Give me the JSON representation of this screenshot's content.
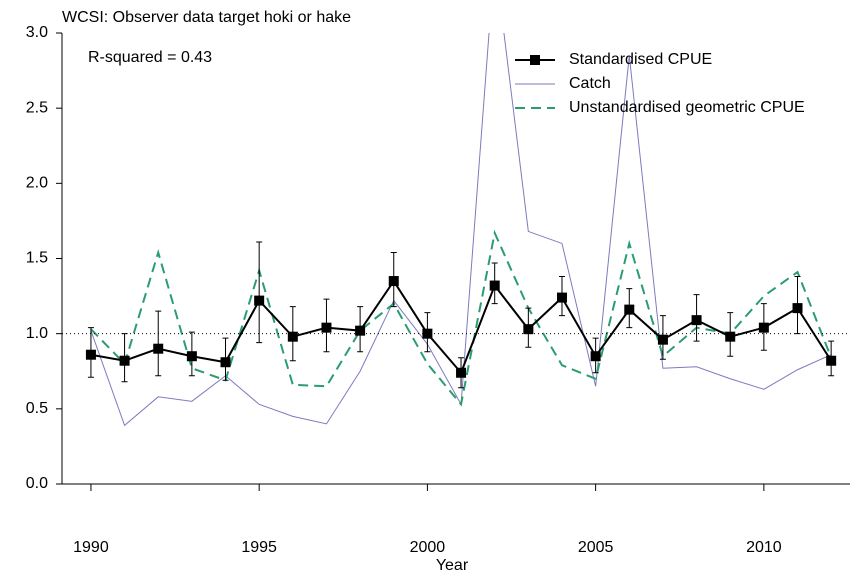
{
  "chart_data": {
    "type": "line",
    "title": "WCSI: Observer data target hoki or hake",
    "annotations": [
      "R-squared = 0.43"
    ],
    "x_label": "Year",
    "x": [
      1990,
      1991,
      1992,
      1993,
      1994,
      1995,
      1996,
      1997,
      1998,
      1999,
      2000,
      2001,
      2002,
      2003,
      2004,
      2005,
      2006,
      2007,
      2008,
      2009,
      2010,
      2011,
      2012
    ],
    "xlim": [
      1989.14,
      2012.56
    ],
    "xticks": [
      1990,
      1995,
      2000,
      2005,
      2010
    ],
    "ylim": [
      0,
      3
    ],
    "yticks": [
      {
        "value": 0,
        "label": "0.0"
      },
      {
        "value": 0.5,
        "label": "0.5"
      },
      {
        "value": 1,
        "label": "1.0"
      },
      {
        "value": 1.5,
        "label": "1.5"
      },
      {
        "value": 2,
        "label": "2.0"
      },
      {
        "value": 2.5,
        "label": "2.5"
      },
      {
        "value": 3,
        "label": "3.0"
      }
    ],
    "reference_line": 1,
    "legend": "upper right",
    "series": [
      {
        "name": "Standardised CPUE",
        "color": "#000000",
        "style": "solid-markers",
        "values": [
          0.86,
          0.82,
          0.9,
          0.85,
          0.81,
          1.22,
          0.98,
          1.04,
          1.02,
          1.35,
          1.0,
          0.74,
          1.32,
          1.03,
          1.24,
          0.85,
          1.16,
          0.96,
          1.09,
          0.98,
          1.04,
          1.17,
          0.82
        ],
        "lower": [
          0.71,
          0.68,
          0.72,
          0.72,
          0.69,
          0.94,
          0.82,
          0.88,
          0.88,
          1.18,
          0.88,
          0.64,
          1.2,
          0.91,
          1.12,
          0.74,
          1.04,
          0.83,
          0.95,
          0.85,
          0.89,
          1.0,
          0.72
        ],
        "upper": [
          1.04,
          1.0,
          1.15,
          1.01,
          0.97,
          1.61,
          1.18,
          1.23,
          1.18,
          1.54,
          1.14,
          0.84,
          1.47,
          1.17,
          1.38,
          0.97,
          1.3,
          1.12,
          1.26,
          1.14,
          1.2,
          1.38,
          0.95
        ]
      },
      {
        "name": "Catch",
        "color": "#7b7bc0",
        "style": "thin",
        "values": [
          1.02,
          0.39,
          0.58,
          0.55,
          0.72,
          0.53,
          0.45,
          0.4,
          0.75,
          1.22,
          0.93,
          0.53,
          3.5,
          1.68,
          1.6,
          0.65,
          2.85,
          0.77,
          0.78,
          0.7,
          0.63,
          0.76,
          0.86
        ]
      },
      {
        "name": "Unstandardised geometric CPUE",
        "color": "#2a9d6f",
        "style": "dashed",
        "values": [
          1.03,
          0.8,
          1.54,
          0.77,
          0.69,
          1.42,
          0.66,
          0.65,
          1.02,
          1.2,
          0.8,
          0.53,
          1.67,
          1.17,
          0.79,
          0.7,
          1.6,
          0.85,
          1.04,
          1.0,
          1.25,
          1.41,
          0.84
        ]
      }
    ]
  }
}
